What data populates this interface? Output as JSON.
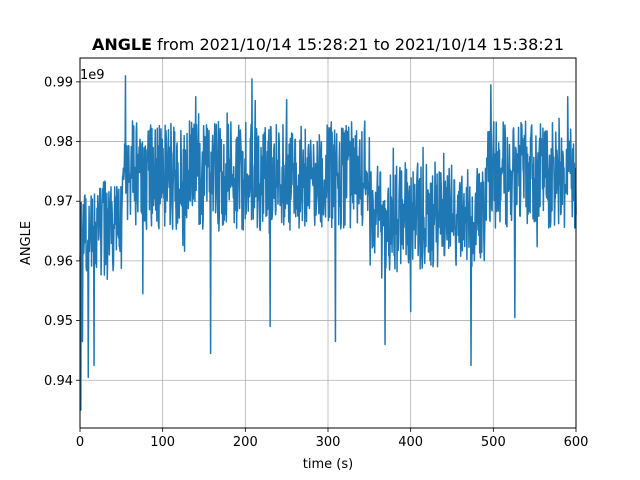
{
  "chart_data": {
    "type": "line",
    "title_bold": "ANGLE",
    "title_rest": " from 2021/10/14 15:28:21 to 2021/10/14 15:38:21",
    "xlabel": "time (s)",
    "ylabel": "ANGLE",
    "offset_text": "1e9",
    "xlim": [
      0,
      600
    ],
    "ylim": [
      0.932,
      0.994
    ],
    "xticks": [
      0,
      100,
      200,
      300,
      400,
      500,
      600
    ],
    "yticks": [
      0.94,
      0.95,
      0.96,
      0.97,
      0.98,
      0.99
    ],
    "grid": true,
    "line_color": "#1f77b4",
    "segments": [
      {
        "x_start": 0,
        "x_end": 50,
        "low": 0.9575,
        "high": 0.9735
      },
      {
        "x_start": 50,
        "x_end": 350,
        "low": 0.965,
        "high": 0.9835
      },
      {
        "x_start": 350,
        "x_end": 490,
        "low": 0.958,
        "high": 0.9765
      },
      {
        "x_start": 490,
        "x_end": 600,
        "low": 0.9655,
        "high": 0.9835
      }
    ],
    "spikes": [
      {
        "x": 1,
        "y": 0.935
      },
      {
        "x": 3,
        "y": 0.9465
      },
      {
        "x": 10,
        "y": 0.9405
      },
      {
        "x": 17,
        "y": 0.9425
      },
      {
        "x": 55,
        "y": 0.991
      },
      {
        "x": 76,
        "y": 0.9545
      },
      {
        "x": 158,
        "y": 0.9445
      },
      {
        "x": 208,
        "y": 0.9905
      },
      {
        "x": 230,
        "y": 0.949
      },
      {
        "x": 309,
        "y": 0.9465
      },
      {
        "x": 369,
        "y": 0.946
      },
      {
        "x": 400,
        "y": 0.9515
      },
      {
        "x": 473,
        "y": 0.9425
      },
      {
        "x": 497,
        "y": 0.9895
      },
      {
        "x": 526,
        "y": 0.9505
      },
      {
        "x": 590,
        "y": 0.9875
      },
      {
        "x": 250,
        "y": 0.987
      },
      {
        "x": 140,
        "y": 0.9875
      },
      {
        "x": 415,
        "y": 0.979
      },
      {
        "x": 440,
        "y": 0.978
      }
    ]
  }
}
